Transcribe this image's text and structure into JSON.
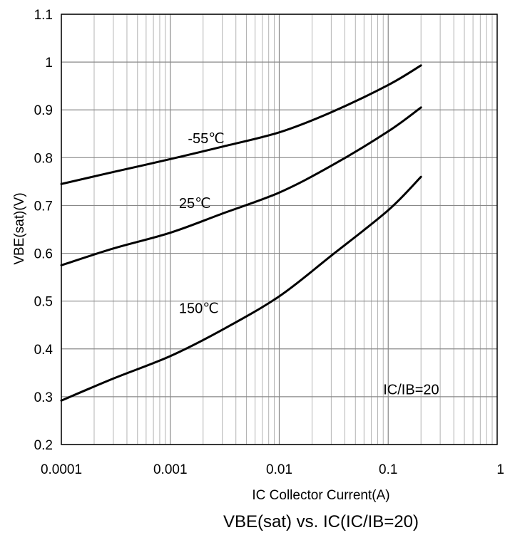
{
  "chart_data": {
    "type": "line",
    "title": "VBE(sat) vs. IC(IC/IB=20)",
    "xlabel": "IC Collector Current(A)",
    "ylabel": "VBE(sat)(V)",
    "x_scale": "log",
    "xlim": [
      0.0001,
      1
    ],
    "ylim": [
      0.2,
      1.1
    ],
    "x_ticks": [
      "0.0001",
      "0.001",
      "0.01",
      "0.1",
      "1"
    ],
    "x_tick_values": [
      0.0001,
      0.001,
      0.01,
      0.1,
      1
    ],
    "y_ticks": [
      "0.2",
      "0.3",
      "0.4",
      "0.5",
      "0.6",
      "0.7",
      "0.8",
      "0.9",
      "1",
      "1.1"
    ],
    "y_tick_values": [
      0.2,
      0.3,
      0.4,
      0.5,
      0.6,
      0.7,
      0.8,
      0.9,
      1.0,
      1.1
    ],
    "grid": true,
    "legend": "none",
    "series": [
      {
        "name": "-55℃",
        "x": [
          0.0001,
          0.0003,
          0.001,
          0.003,
          0.01,
          0.03,
          0.1,
          0.2
        ],
        "y": [
          0.745,
          0.77,
          0.797,
          0.823,
          0.853,
          0.895,
          0.952,
          0.993
        ]
      },
      {
        "name": "25℃",
        "x": [
          0.0001,
          0.0003,
          0.001,
          0.003,
          0.01,
          0.03,
          0.1,
          0.2
        ],
        "y": [
          0.575,
          0.61,
          0.643,
          0.683,
          0.727,
          0.783,
          0.855,
          0.905
        ]
      },
      {
        "name": "150℃",
        "x": [
          0.0001,
          0.0003,
          0.001,
          0.003,
          0.01,
          0.03,
          0.1,
          0.2
        ],
        "y": [
          0.292,
          0.338,
          0.385,
          0.44,
          0.51,
          0.595,
          0.69,
          0.76
        ]
      }
    ],
    "annotations": [
      {
        "text": "-55℃",
        "x": 0.00145,
        "y": 0.83
      },
      {
        "text": "25℃",
        "x": 0.0012,
        "y": 0.695
      },
      {
        "text": "150℃",
        "x": 0.0012,
        "y": 0.475
      },
      {
        "text": "IC/IB=20",
        "x": 0.09,
        "y": 0.305
      }
    ],
    "line_color": "#000000"
  }
}
